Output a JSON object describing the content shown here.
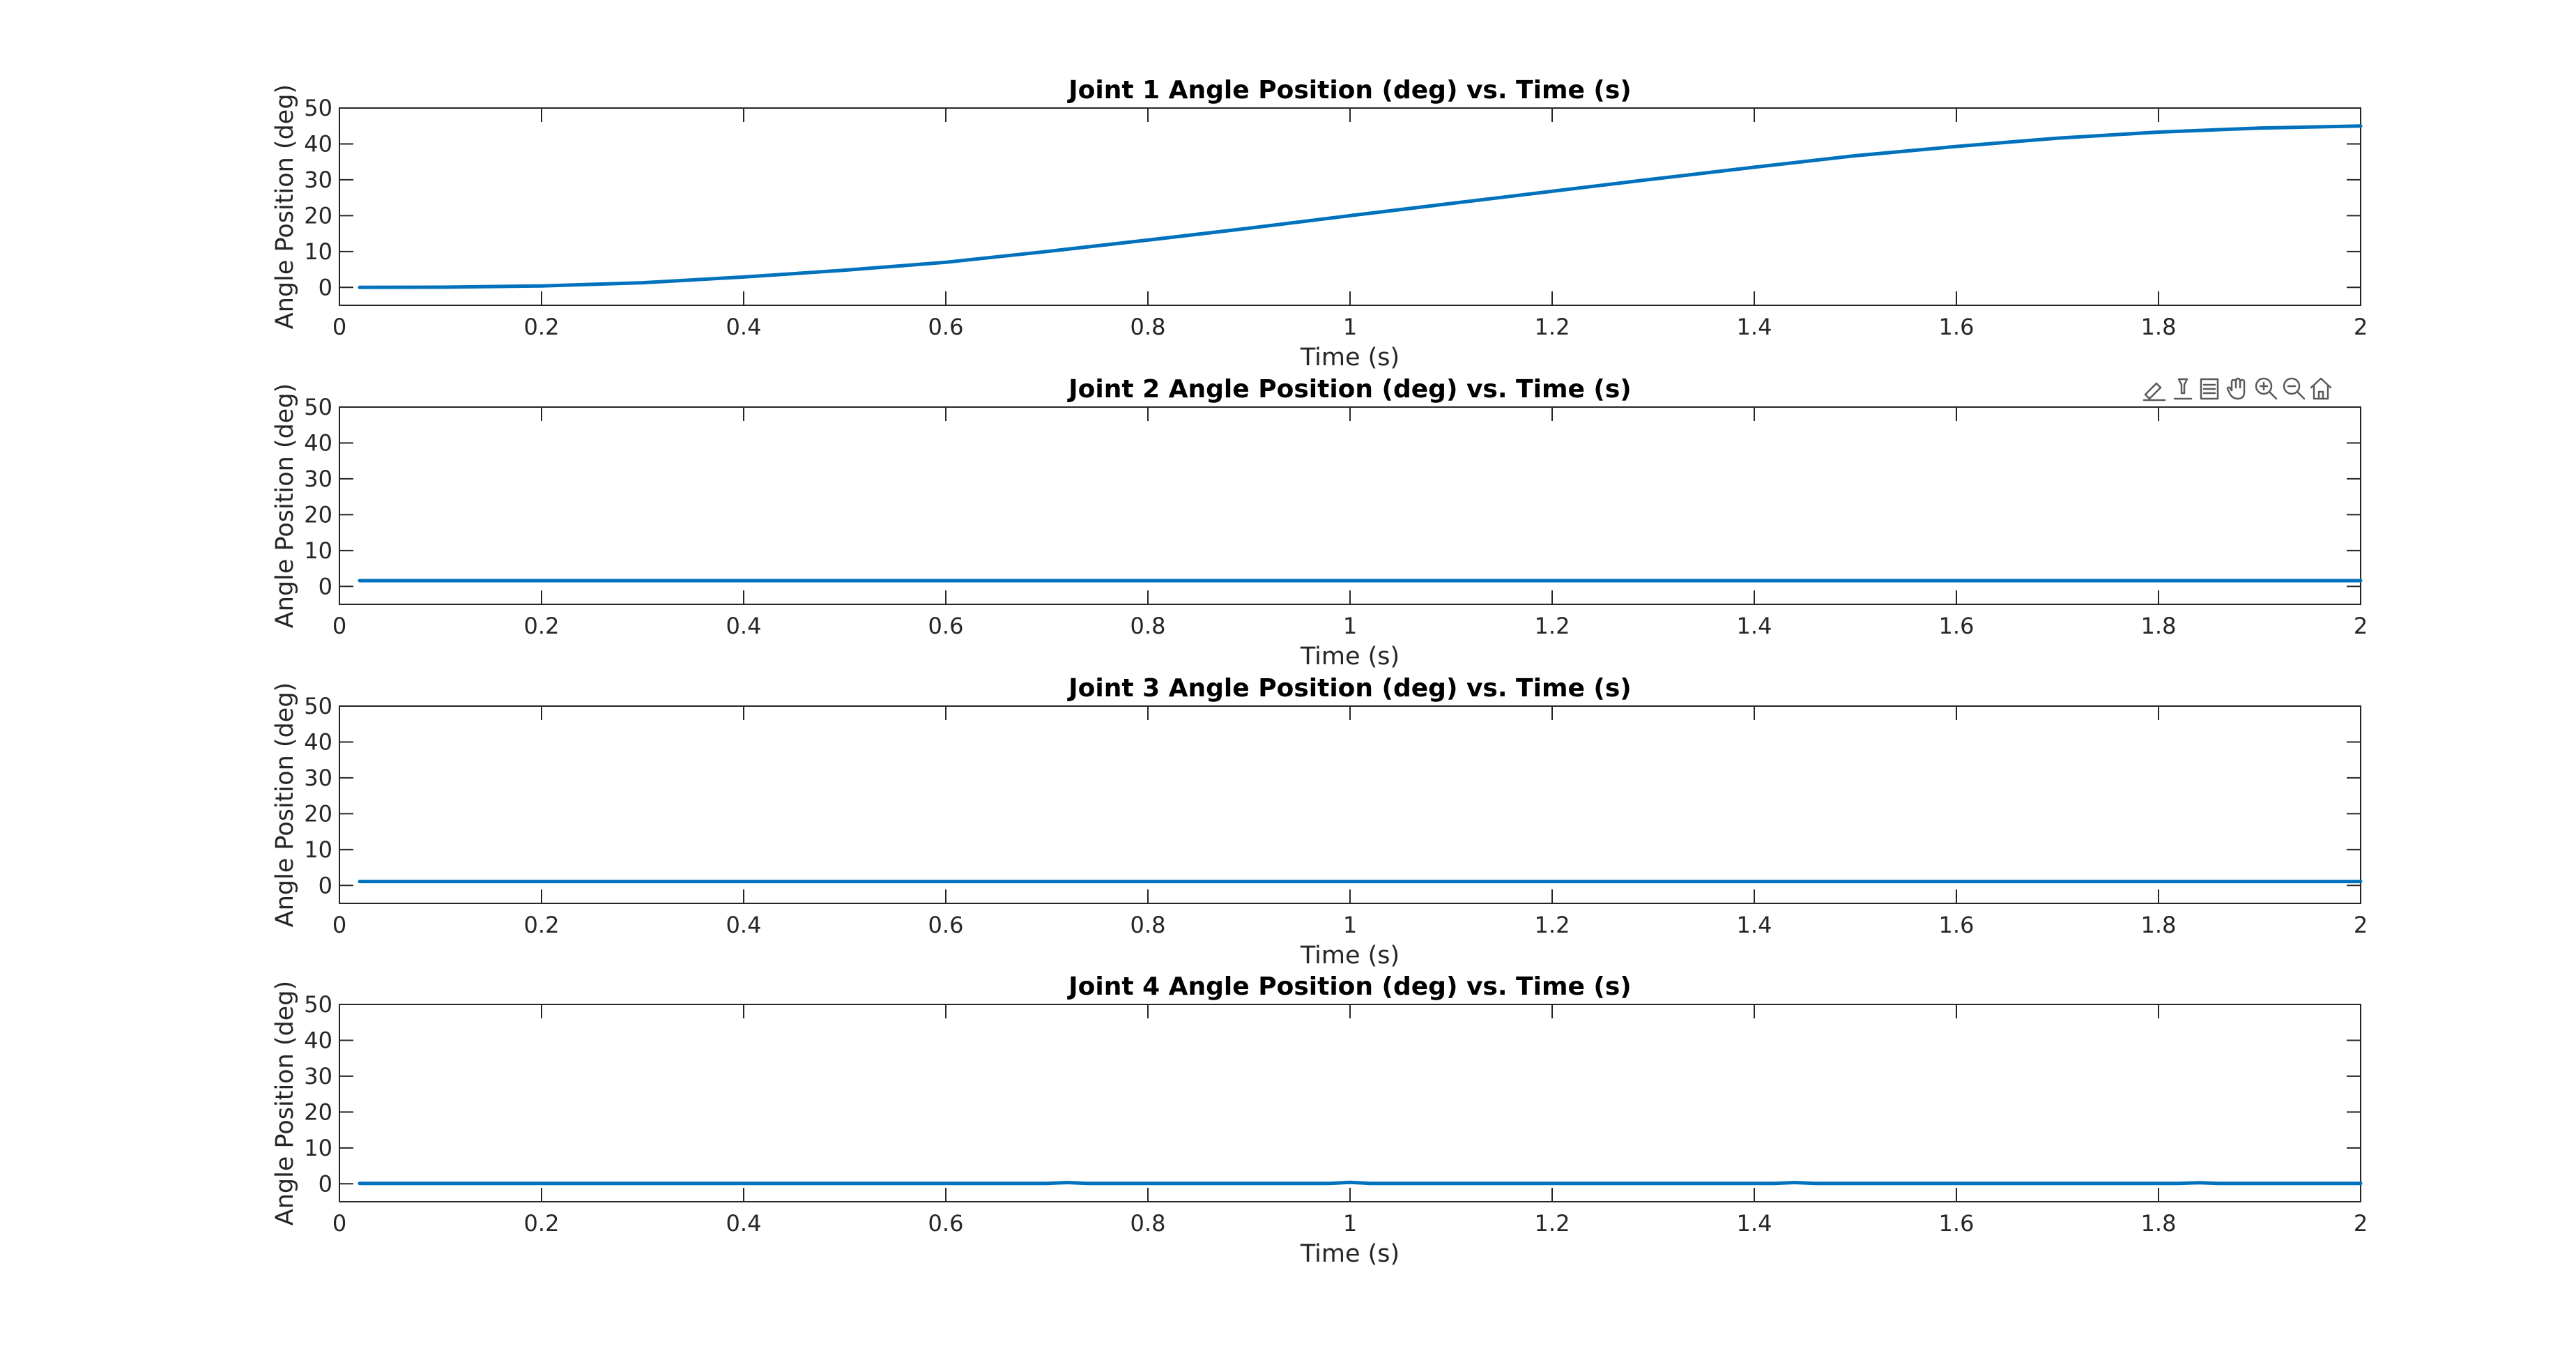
{
  "colors": {
    "series": "#0072BD",
    "axis": "#262626"
  },
  "toolbar": {
    "icons": [
      "brush-icon",
      "data-tips-icon",
      "restore-view-icon",
      "pan-hand-icon",
      "zoom-in-icon",
      "zoom-out-icon",
      "home-icon"
    ]
  },
  "chart_data": [
    {
      "type": "line",
      "title": "Joint 1 Angle Position (deg) vs. Time (s)",
      "xlabel": "Time (s)",
      "ylabel": "Angle Position (deg)",
      "xlim": [
        0,
        2
      ],
      "ylim": [
        -5,
        50
      ],
      "xticks": [
        0,
        0.2,
        0.4,
        0.6,
        0.8,
        1,
        1.2,
        1.4,
        1.6,
        1.8,
        2
      ],
      "xtick_labels": [
        "0",
        "0.2",
        "0.4",
        "0.6",
        "0.8",
        "1",
        "1.2",
        "1.4",
        "1.6",
        "1.8",
        "2"
      ],
      "yticks": [
        0,
        10,
        20,
        30,
        40,
        50
      ],
      "ytick_labels": [
        "0",
        "10",
        "20",
        "30",
        "40",
        "50"
      ],
      "grid": false,
      "series": [
        {
          "x": [
            0.02,
            0.1,
            0.2,
            0.3,
            0.4,
            0.5,
            0.6,
            0.7,
            0.8,
            0.9,
            1.0,
            1.1,
            1.2,
            1.3,
            1.4,
            1.5,
            1.6,
            1.7,
            1.8,
            1.9,
            2.0
          ],
          "values": [
            0,
            0.05,
            0.4,
            1.3,
            2.9,
            4.8,
            7.0,
            10.0,
            13.2,
            16.5,
            20.0,
            23.4,
            26.8,
            30.2,
            33.5,
            36.7,
            39.3,
            41.6,
            43.3,
            44.4,
            45.0
          ]
        }
      ]
    },
    {
      "type": "line",
      "title": "Joint 2 Angle Position (deg) vs. Time (s)",
      "xlabel": "Time (s)",
      "ylabel": "Angle Position (deg)",
      "xlim": [
        0,
        2
      ],
      "ylim": [
        -5,
        50
      ],
      "xticks": [
        0,
        0.2,
        0.4,
        0.6,
        0.8,
        1,
        1.2,
        1.4,
        1.6,
        1.8,
        2
      ],
      "xtick_labels": [
        "0",
        "0.2",
        "0.4",
        "0.6",
        "0.8",
        "1",
        "1.2",
        "1.4",
        "1.6",
        "1.8",
        "2"
      ],
      "yticks": [
        0,
        10,
        20,
        30,
        40,
        50
      ],
      "ytick_labels": [
        "0",
        "10",
        "20",
        "30",
        "40",
        "50"
      ],
      "grid": false,
      "series": [
        {
          "x": [
            0.02,
            2.0
          ],
          "values": [
            1.6,
            1.6
          ]
        }
      ]
    },
    {
      "type": "line",
      "title": "Joint 3 Angle Position (deg) vs. Time (s)",
      "xlabel": "Time (s)",
      "ylabel": "Angle Position (deg)",
      "xlim": [
        0,
        2
      ],
      "ylim": [
        -5,
        50
      ],
      "xticks": [
        0,
        0.2,
        0.4,
        0.6,
        0.8,
        1,
        1.2,
        1.4,
        1.6,
        1.8,
        2
      ],
      "xtick_labels": [
        "0",
        "0.2",
        "0.4",
        "0.6",
        "0.8",
        "1",
        "1.2",
        "1.4",
        "1.6",
        "1.8",
        "2"
      ],
      "yticks": [
        0,
        10,
        20,
        30,
        40,
        50
      ],
      "ytick_labels": [
        "0",
        "10",
        "20",
        "30",
        "40",
        "50"
      ],
      "grid": false,
      "series": [
        {
          "x": [
            0.02,
            2.0
          ],
          "values": [
            1.1,
            1.1
          ]
        }
      ]
    },
    {
      "type": "line",
      "title": "Joint 4 Angle Position (deg) vs. Time (s)",
      "xlabel": "Time (s)",
      "ylabel": "Angle Position (deg)",
      "xlim": [
        0,
        2
      ],
      "ylim": [
        -5,
        50
      ],
      "xticks": [
        0,
        0.2,
        0.4,
        0.6,
        0.8,
        1,
        1.2,
        1.4,
        1.6,
        1.8,
        2
      ],
      "xtick_labels": [
        "0",
        "0.2",
        "0.4",
        "0.6",
        "0.8",
        "1",
        "1.2",
        "1.4",
        "1.6",
        "1.8",
        "2"
      ],
      "yticks": [
        0,
        10,
        20,
        30,
        40,
        50
      ],
      "ytick_labels": [
        "0",
        "10",
        "20",
        "30",
        "40",
        "50"
      ],
      "grid": false,
      "series": [
        {
          "x": [
            0.02,
            0.7,
            0.72,
            0.74,
            0.98,
            1.0,
            1.02,
            1.42,
            1.44,
            1.46,
            1.82,
            1.84,
            1.86,
            2.0
          ],
          "values": [
            0.1,
            0.1,
            0.35,
            0.1,
            0.1,
            0.4,
            0.1,
            0.1,
            0.35,
            0.1,
            0.1,
            0.3,
            0.1,
            0.1
          ]
        }
      ]
    }
  ]
}
